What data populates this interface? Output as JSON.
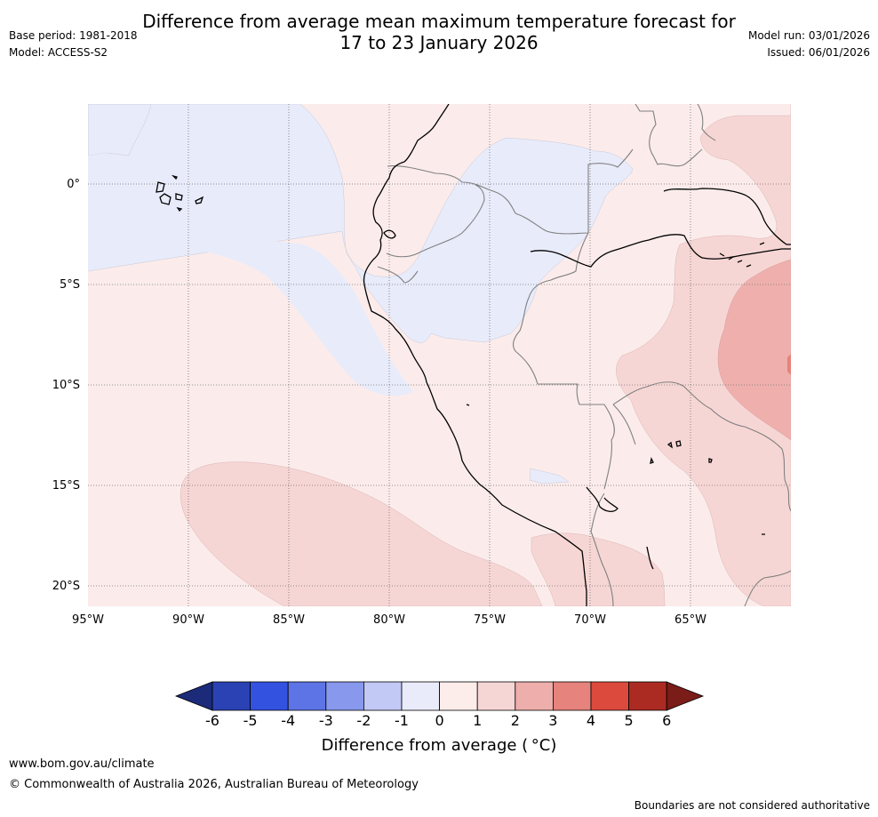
{
  "header": {
    "title_line1": "Difference from average mean maximum temperature forecast for",
    "title_line2": "17 to 23 January 2026",
    "base_period": "Base period: 1981-2018",
    "model": "Model: ACCESS-S2",
    "model_run": "Model run: 03/01/2026",
    "issued": "Issued: 06/01/2026"
  },
  "map": {
    "lat_labels": [
      "0°",
      "5°S",
      "10°S",
      "15°S",
      "20°S"
    ],
    "lon_labels": [
      "95°W",
      "90°W",
      "85°W",
      "80°W",
      "75°W",
      "70°W",
      "65°W"
    ],
    "colors": {
      "ocean_neg1_0": "#e8ebfa",
      "pos0_1": "#fbeceb",
      "pos1_2": "#f6d6d5",
      "pos2_3": "#efb0ad",
      "coast": "#000000",
      "borders": "#808080"
    }
  },
  "colorbar": {
    "ticks": [
      "-6",
      "-5",
      "-4",
      "-3",
      "-2",
      "-1",
      "0",
      "1",
      "2",
      "3",
      "4",
      "5",
      "6"
    ],
    "colors": [
      "#1c2a7a",
      "#2a42b3",
      "#3452e0",
      "#5d74e6",
      "#8898ec",
      "#c3c9f5",
      "#e9ebfb",
      "#fcecea",
      "#f6d6d4",
      "#eeaeab",
      "#e6837c",
      "#dc4a3e",
      "#ab2a22",
      "#7a1c17"
    ],
    "label": "Difference from average ( °C)"
  },
  "footer": {
    "url": "www.bom.gov.au/climate",
    "copyright": "© Commonwealth of Australia 2026, Australian Bureau of Meteorology",
    "note": "Boundaries are not considered authoritative"
  }
}
